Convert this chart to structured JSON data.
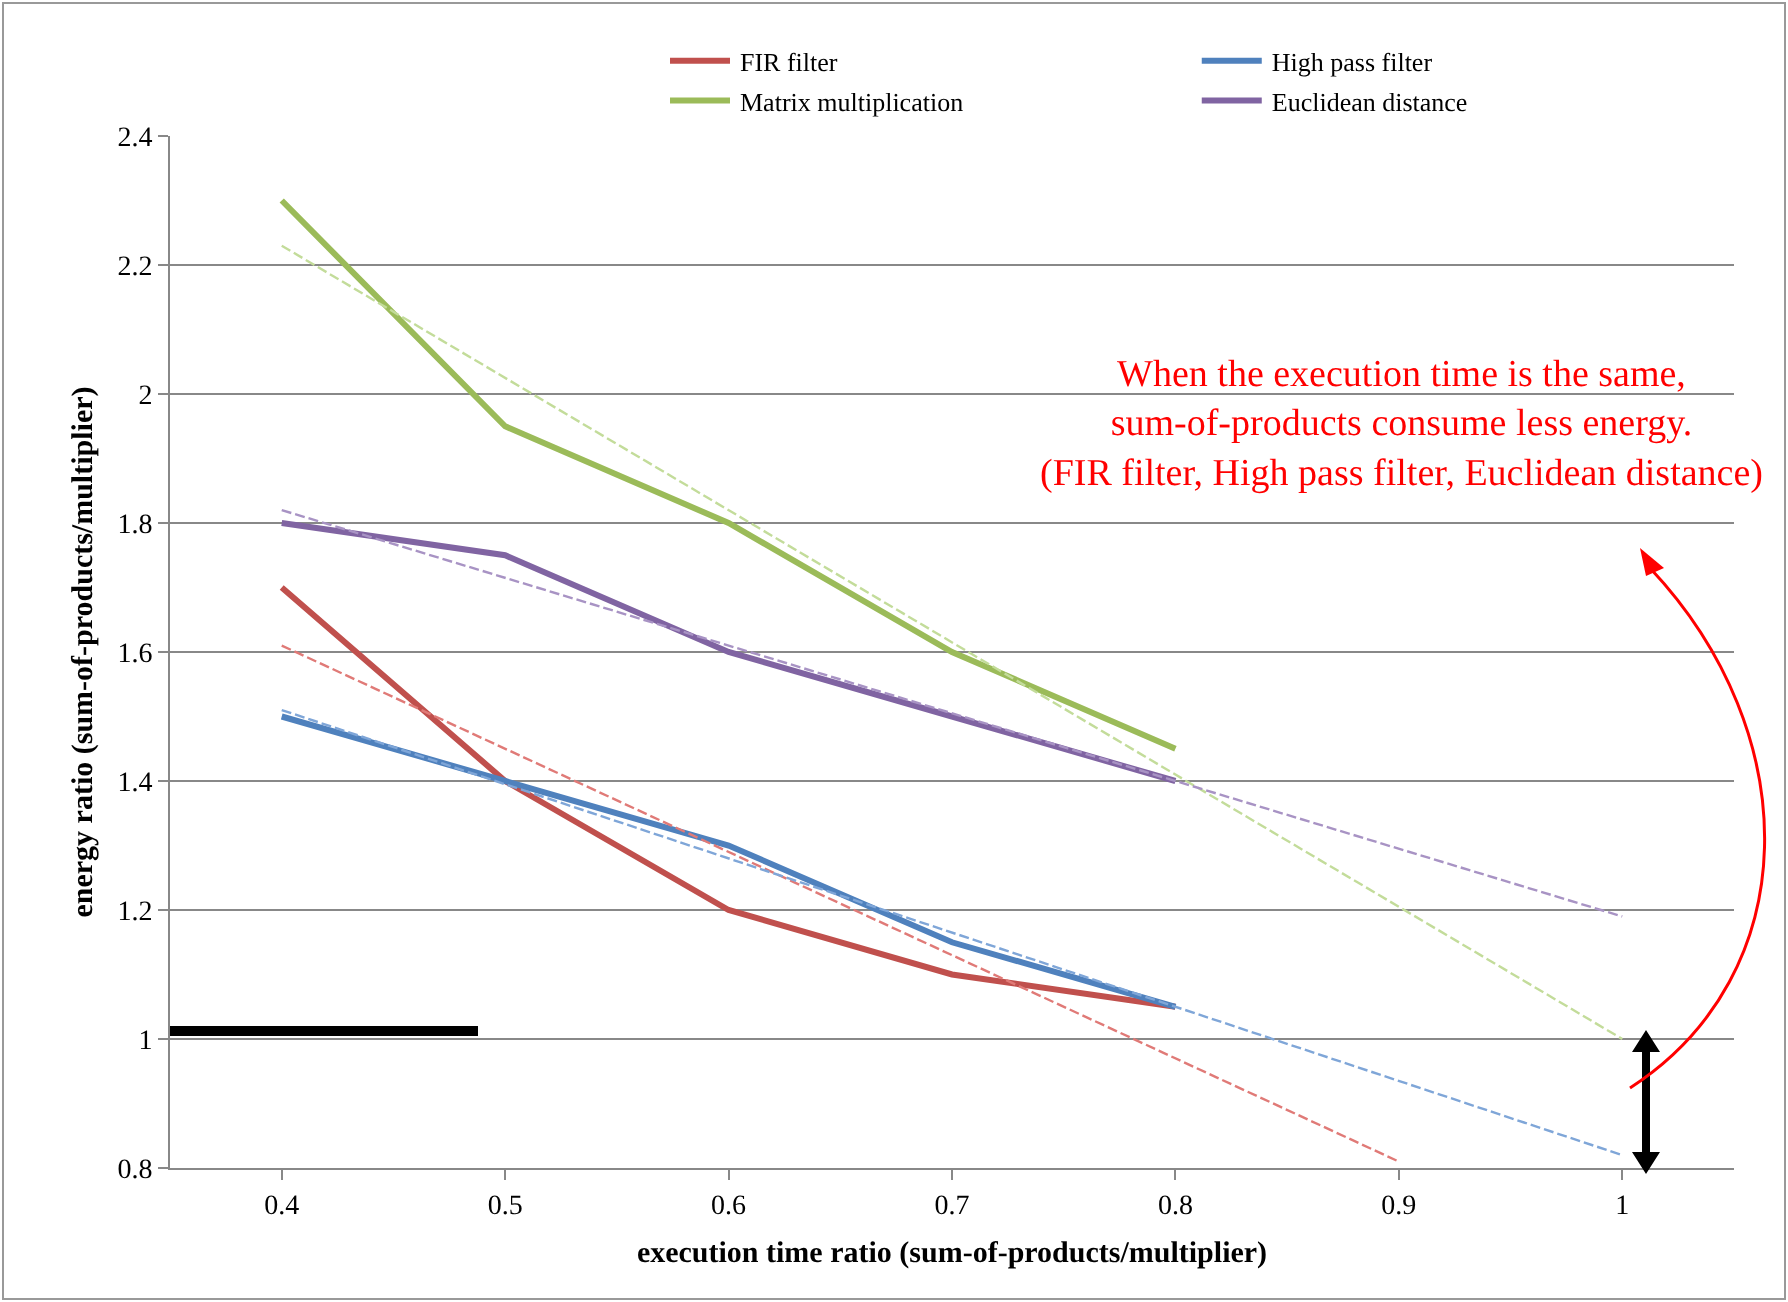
{
  "chart_data": {
    "type": "line",
    "xlabel": "execution time ratio (sum-of-products/multiplier)",
    "ylabel": "energy ratio (sum-of-products/multiplier)",
    "categories": [
      "0.4",
      "0.5",
      "0.6",
      "0.7",
      "0.8",
      "0.9",
      "1"
    ],
    "ylim": [
      0.8,
      2.4
    ],
    "yticks": [
      0.8,
      1,
      1.2,
      1.4,
      1.6,
      1.8,
      2,
      2.2,
      2.4
    ],
    "grid": "y",
    "legend": "top right",
    "line_style": "solid",
    "series": [
      {
        "name": "FIR filter",
        "color": "#c0504d",
        "values": [
          1.7,
          1.4,
          1.2,
          1.1,
          1.05,
          null,
          null
        ]
      },
      {
        "name": "High pass filter",
        "color": "#4f81bd",
        "values": [
          1.5,
          1.4,
          1.3,
          1.15,
          1.05,
          null,
          null
        ]
      },
      {
        "name": "Matrix multiplication",
        "color": "#9bbb59",
        "values": [
          2.3,
          1.95,
          1.8,
          1.6,
          1.45,
          null,
          null
        ]
      },
      {
        "name": "Euclidean distance",
        "color": "#8064a2",
        "values": [
          1.8,
          1.75,
          1.6,
          1.5,
          1.4,
          null,
          null
        ]
      },
      {
        "type": "line",
        "color": "#e07a77",
        "line_style": "dashed",
        "x": [
          "0.4",
          "0.9"
        ],
        "values": [
          1.61,
          0.81
        ]
      },
      {
        "type": "line",
        "color": "#7fa6d8",
        "line_style": "dashed",
        "x": [
          "0.4",
          "1"
        ],
        "values": [
          1.51,
          0.82
        ]
      },
      {
        "type": "line",
        "color": "#c3dc9a",
        "line_style": "dashed",
        "x": [
          "0.4",
          "1"
        ],
        "values": [
          2.23,
          1.0
        ]
      },
      {
        "type": "line",
        "color": "#a893c4",
        "line_style": "dashed",
        "x": [
          "0.4",
          "1"
        ],
        "values": [
          1.82,
          1.19
        ]
      }
    ],
    "annotations": [
      "When the execution time is the same,\nsum-of-products consume less energy.\n(FIR filter, High pass filter, Euclidean distance)"
    ]
  }
}
